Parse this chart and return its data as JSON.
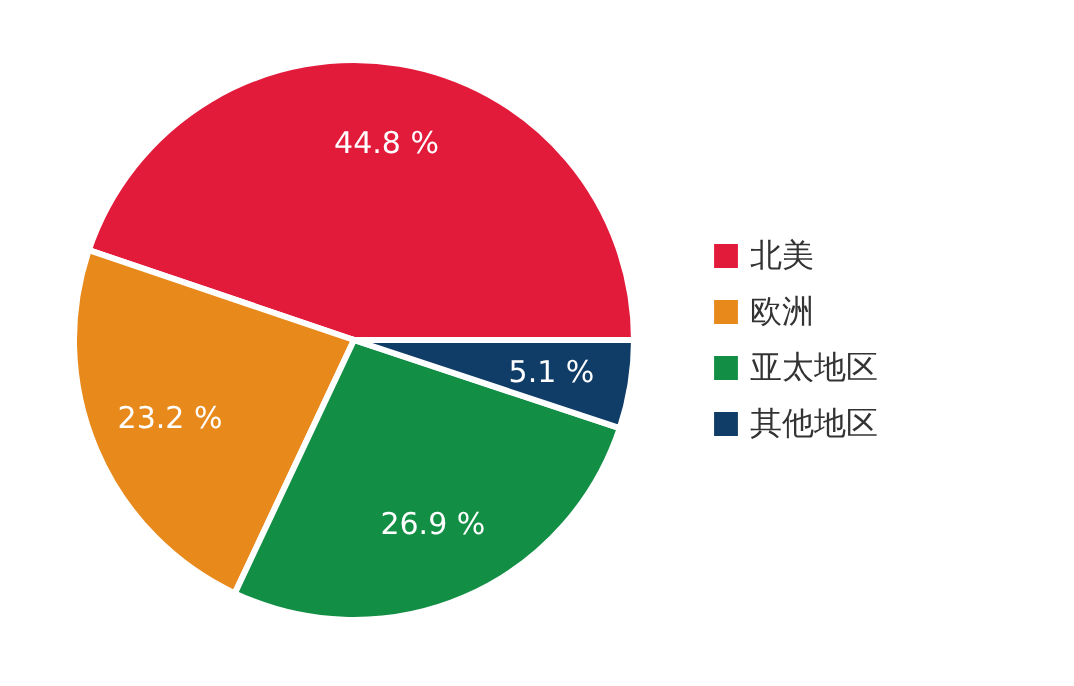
{
  "chart_data": {
    "type": "pie",
    "categories": [
      "北美",
      "欧洲",
      "亚太地区",
      "其他地区"
    ],
    "values": [
      44.8,
      23.2,
      26.9,
      5.1
    ],
    "colors": [
      "#e31b3b",
      "#e8891c",
      "#138f45",
      "#0f3d68"
    ],
    "value_labels": [
      "44.8 %",
      "23.2 %",
      "26.9 %",
      "5.1 %"
    ],
    "legend": "right"
  }
}
